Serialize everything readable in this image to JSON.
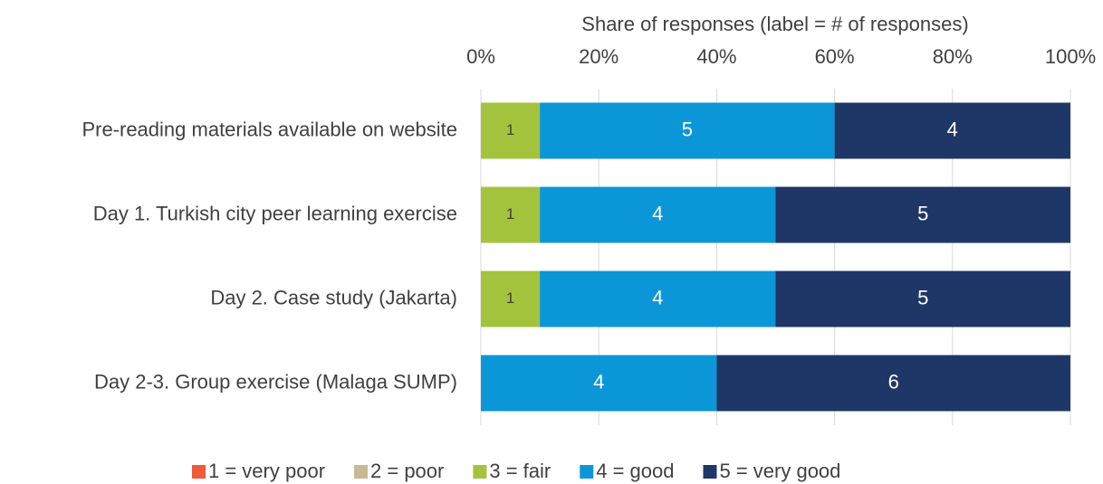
{
  "chart_data": {
    "type": "stacked_bar_horizontal",
    "xlabel": "Share of responses (label = # of responses)",
    "categories": [
      "Pre-reading materials available on website",
      "Day 1. Turkish city peer learning exercise",
      "Day 2. Case study (Jakarta)",
      "Day 2-3. Group exercise (Malaga SUMP)"
    ],
    "series": [
      {
        "name": "1 = very poor",
        "color": "#ef5a3a",
        "values": [
          0,
          0,
          0,
          0
        ],
        "value_labels": [
          null,
          null,
          null,
          null
        ]
      },
      {
        "name": "2 = poor",
        "color": "#c7b994",
        "values": [
          0,
          0,
          0,
          0
        ],
        "value_labels": [
          null,
          null,
          null,
          null
        ]
      },
      {
        "name": "3 = fair",
        "color": "#a4c33c",
        "values": [
          10,
          10,
          10,
          0
        ],
        "value_labels": [
          "1",
          "1",
          "1",
          null
        ]
      },
      {
        "name": "4 = good",
        "color": "#0b96d7",
        "values": [
          50,
          40,
          40,
          40
        ],
        "value_labels": [
          "5",
          "4",
          "4",
          "4"
        ]
      },
      {
        "name": "5 = very good",
        "color": "#1e3767",
        "values": [
          40,
          50,
          50,
          60
        ],
        "value_labels": [
          "4",
          "5",
          "5",
          "6"
        ]
      }
    ],
    "xlim": [
      0,
      100
    ],
    "xticks": [
      {
        "value": 0,
        "label": "0%"
      },
      {
        "value": 20,
        "label": "20%"
      },
      {
        "value": 40,
        "label": "40%"
      },
      {
        "value": 60,
        "label": "60%"
      },
      {
        "value": 80,
        "label": "80%"
      },
      {
        "value": 100,
        "label": "100%"
      }
    ],
    "grid": true,
    "legend": "bottom"
  }
}
